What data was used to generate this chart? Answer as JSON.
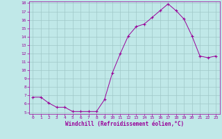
{
  "x": [
    0,
    1,
    2,
    3,
    4,
    5,
    6,
    7,
    8,
    9,
    10,
    11,
    12,
    13,
    14,
    15,
    16,
    17,
    18,
    19,
    20,
    21,
    22,
    23
  ],
  "y": [
    6.8,
    6.8,
    6.1,
    5.6,
    5.6,
    5.1,
    5.1,
    5.1,
    5.1,
    6.5,
    9.7,
    12.0,
    14.1,
    15.2,
    15.5,
    16.3,
    17.1,
    17.9,
    17.1,
    16.1,
    14.1,
    11.7,
    11.5,
    11.7
  ],
  "line_color": "#990099",
  "marker": "+",
  "marker_color": "#990099",
  "bg_color": "#c0e8e8",
  "grid_color": "#a0c8c8",
  "xlabel": "Windchill (Refroidissement éolien,°C)",
  "xlabel_color": "#990099",
  "tick_color": "#990099",
  "spine_color": "#990099",
  "ylim": [
    5,
    18
  ],
  "xlim": [
    -0.5,
    23.5
  ],
  "yticks": [
    5,
    6,
    7,
    8,
    9,
    10,
    11,
    12,
    13,
    14,
    15,
    16,
    17,
    18
  ],
  "xticks": [
    0,
    1,
    2,
    3,
    4,
    5,
    6,
    7,
    8,
    9,
    10,
    11,
    12,
    13,
    14,
    15,
    16,
    17,
    18,
    19,
    20,
    21,
    22,
    23
  ]
}
